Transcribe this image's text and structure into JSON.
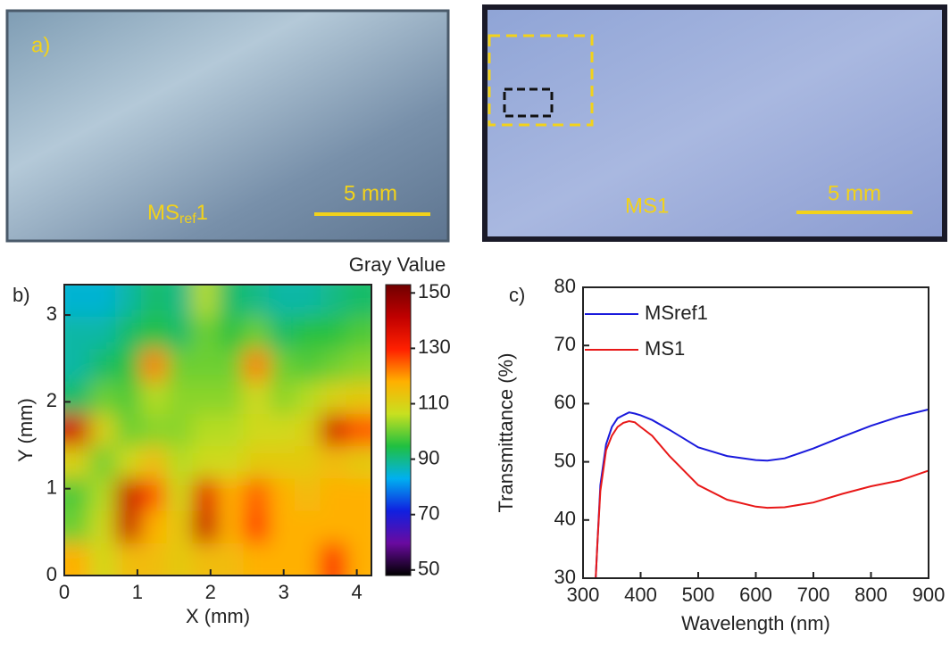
{
  "panel_a": {
    "label": "a)",
    "photos": [
      {
        "label": "MS",
        "label_sub": "ref",
        "label_suffix": "1",
        "scale_bar": "5 mm"
      },
      {
        "label": "MS1",
        "scale_bar": "5 mm"
      }
    ]
  },
  "chart_data": [
    {
      "type": "heatmap",
      "panel_label": "b)",
      "x_label": "X (mm)",
      "y_label": "Y (mm)",
      "colorbar_label": "Gray Value",
      "xlim": [
        0,
        4.2
      ],
      "ylim": [
        0,
        3.35
      ],
      "xticks": [
        0,
        1,
        2,
        3,
        4
      ],
      "yticks": [
        0,
        1,
        2,
        3
      ],
      "clim": [
        48,
        153
      ],
      "cticks": [
        50,
        70,
        90,
        110,
        130,
        150
      ],
      "colormap": [
        "#000000",
        "#6a0aa0",
        "#1020e0",
        "#00b0f0",
        "#20c040",
        "#c8e020",
        "#ffb000",
        "#ff2000",
        "#c00000",
        "#700000"
      ],
      "z": [
        [
          85,
          85,
          88,
          92,
          90,
          105,
          92,
          90,
          88,
          88,
          90,
          92
        ],
        [
          88,
          88,
          92,
          95,
          92,
          100,
          95,
          100,
          92,
          95,
          95,
          98
        ],
        [
          88,
          92,
          95,
          122,
          100,
          100,
          100,
          122,
          100,
          98,
          100,
          102
        ],
        [
          92,
          100,
          98,
          105,
          102,
          102,
          102,
          108,
          102,
          105,
          110,
          112
        ],
        [
          138,
          110,
          100,
          102,
          102,
          105,
          105,
          108,
          108,
          110,
          138,
          125
        ],
        [
          110,
          100,
          108,
          115,
          105,
          108,
          108,
          112,
          112,
          112,
          115,
          112
        ],
        [
          98,
          105,
          140,
          125,
          108,
          135,
          118,
          125,
          118,
          115,
          118,
          118
        ],
        [
          100,
          108,
          140,
          118,
          112,
          140,
          118,
          128,
          118,
          118,
          118,
          118
        ],
        [
          118,
          108,
          115,
          115,
          112,
          115,
          115,
          118,
          118,
          118,
          130,
          118
        ]
      ]
    },
    {
      "type": "line",
      "panel_label": "c)",
      "x_label": "Wavelength (nm)",
      "y_label": "Transmittance (%)",
      "xlim": [
        300,
        900
      ],
      "ylim": [
        30,
        80
      ],
      "xticks": [
        300,
        400,
        500,
        600,
        700,
        800,
        900
      ],
      "yticks": [
        30,
        40,
        50,
        60,
        70,
        80
      ],
      "x": [
        322,
        325,
        330,
        340,
        350,
        360,
        370,
        380,
        390,
        400,
        420,
        450,
        500,
        550,
        600,
        620,
        650,
        700,
        750,
        800,
        850,
        900
      ],
      "series": [
        {
          "name": "MSref1",
          "color": "#1a1adc",
          "values": [
            30,
            36,
            46,
            53,
            56,
            57.5,
            58,
            58.5,
            58.3,
            58,
            57.2,
            55.5,
            52.5,
            51,
            50.3,
            50.2,
            50.6,
            52.3,
            54.3,
            56.2,
            57.8,
            59
          ]
        },
        {
          "name": "MS1",
          "color": "#e81818",
          "values": [
            30,
            36,
            45,
            52,
            54.5,
            56,
            56.7,
            57,
            56.8,
            56,
            54.5,
            51,
            46,
            43.5,
            42.3,
            42.1,
            42.2,
            43,
            44.5,
            45.8,
            46.8,
            48.5
          ]
        }
      ]
    }
  ]
}
